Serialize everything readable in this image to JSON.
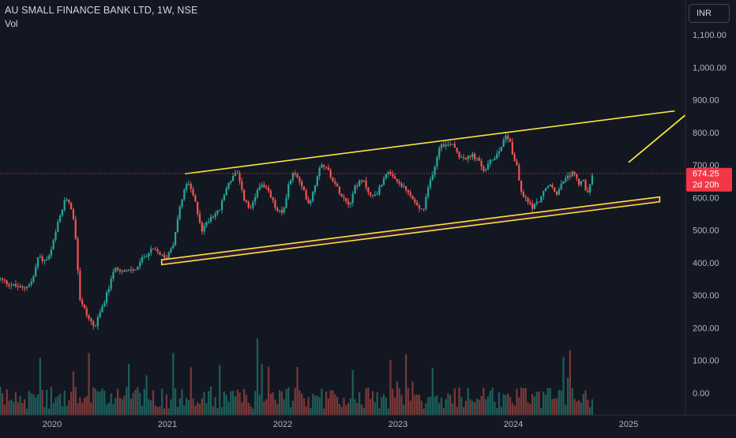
{
  "header": {
    "symbol_title": "AU SMALL FINANCE BANK LTD, 1W, NSE",
    "volume_label": "Vol"
  },
  "currency_button": "INR",
  "last_price_tag": {
    "price": "674.25",
    "countdown": "2d 20h"
  },
  "colors": {
    "background": "#131722",
    "up_candle": "#26a69a",
    "down_candle": "#ef5350",
    "up_volume": "#1d5e58",
    "down_volume": "#7a3838",
    "annotation": "#f5e63b",
    "price_line": "#f23645"
  },
  "chart_data": {
    "type": "candlestick",
    "timeframe": "1W",
    "x_tick_labels": [
      "2020",
      "2021",
      "2022",
      "2023",
      "2024",
      "2025"
    ],
    "y_tick_labels": [
      "1,100.00",
      "1,000.00",
      "900.00",
      "800.00",
      "700.00",
      "600.00",
      "500.00",
      "400.00",
      "300.00",
      "200.00",
      "100.00",
      "0.00"
    ],
    "y_ticks": [
      1100,
      1000,
      900,
      800,
      700,
      600,
      500,
      400,
      300,
      200,
      100,
      0
    ],
    "x_domain": [
      2019.55,
      2025.55
    ],
    "y_range": [
      -70,
      1140
    ],
    "grid": false,
    "last_price": 674.25,
    "price_keypoints": [
      [
        2019.55,
        350
      ],
      [
        2019.62,
        335
      ],
      [
        2019.75,
        320
      ],
      [
        2019.83,
        345
      ],
      [
        2019.88,
        420
      ],
      [
        2019.93,
        405
      ],
      [
        2019.98,
        420
      ],
      [
        2020.05,
        520
      ],
      [
        2020.12,
        600
      ],
      [
        2020.16,
        580
      ],
      [
        2020.2,
        500
      ],
      [
        2020.24,
        290
      ],
      [
        2020.3,
        240
      ],
      [
        2020.37,
        200
      ],
      [
        2020.42,
        250
      ],
      [
        2020.48,
        310
      ],
      [
        2020.55,
        390
      ],
      [
        2020.63,
        370
      ],
      [
        2020.72,
        380
      ],
      [
        2020.8,
        420
      ],
      [
        2020.87,
        440
      ],
      [
        2020.93,
        430
      ],
      [
        2020.98,
        410
      ],
      [
        2021.05,
        460
      ],
      [
        2021.1,
        560
      ],
      [
        2021.17,
        650
      ],
      [
        2021.23,
        600
      ],
      [
        2021.3,
        500
      ],
      [
        2021.37,
        540
      ],
      [
        2021.45,
        560
      ],
      [
        2021.52,
        640
      ],
      [
        2021.6,
        680
      ],
      [
        2021.66,
        600
      ],
      [
        2021.72,
        560
      ],
      [
        2021.8,
        640
      ],
      [
        2021.87,
        620
      ],
      [
        2021.95,
        560
      ],
      [
        2022.0,
        550
      ],
      [
        2022.05,
        640
      ],
      [
        2022.1,
        680
      ],
      [
        2022.18,
        620
      ],
      [
        2022.23,
        580
      ],
      [
        2022.28,
        640
      ],
      [
        2022.33,
        710
      ],
      [
        2022.4,
        680
      ],
      [
        2022.47,
        630
      ],
      [
        2022.53,
        600
      ],
      [
        2022.58,
        580
      ],
      [
        2022.63,
        640
      ],
      [
        2022.7,
        650
      ],
      [
        2022.77,
        600
      ],
      [
        2022.83,
        620
      ],
      [
        2022.9,
        680
      ],
      [
        2022.95,
        660
      ],
      [
        2023.02,
        640
      ],
      [
        2023.1,
        610
      ],
      [
        2023.17,
        570
      ],
      [
        2023.22,
        560
      ],
      [
        2023.27,
        640
      ],
      [
        2023.32,
        700
      ],
      [
        2023.37,
        770
      ],
      [
        2023.42,
        760
      ],
      [
        2023.47,
        770
      ],
      [
        2023.53,
        730
      ],
      [
        2023.6,
        720
      ],
      [
        2023.65,
        730
      ],
      [
        2023.7,
        710
      ],
      [
        2023.75,
        680
      ],
      [
        2023.8,
        710
      ],
      [
        2023.87,
        740
      ],
      [
        2023.93,
        790
      ],
      [
        2023.97,
        780
      ],
      [
        2024.0,
        720
      ],
      [
        2024.03,
        700
      ],
      [
        2024.07,
        610
      ],
      [
        2024.12,
        590
      ],
      [
        2024.17,
        570
      ],
      [
        2024.22,
        590
      ],
      [
        2024.27,
        620
      ],
      [
        2024.32,
        640
      ],
      [
        2024.37,
        610
      ],
      [
        2024.42,
        640
      ],
      [
        2024.47,
        660
      ],
      [
        2024.52,
        680
      ],
      [
        2024.57,
        640
      ],
      [
        2024.6,
        660
      ],
      [
        2024.63,
        610
      ],
      [
        2024.66,
        630
      ],
      [
        2024.69,
        674
      ]
    ],
    "annotations": [
      {
        "type": "trend_line",
        "points": [
          [
            2021.15,
            673
          ],
          [
            2025.4,
            866
          ]
        ]
      },
      {
        "type": "rectangle_channel",
        "corners": [
          [
            2020.95,
            409
          ],
          [
            2025.27,
            602
          ],
          [
            2025.27,
            587
          ],
          [
            2020.95,
            394
          ]
        ]
      },
      {
        "type": "arrow",
        "from": [
          2025.0,
          708
        ],
        "to": [
          2025.65,
          900
        ]
      }
    ]
  }
}
